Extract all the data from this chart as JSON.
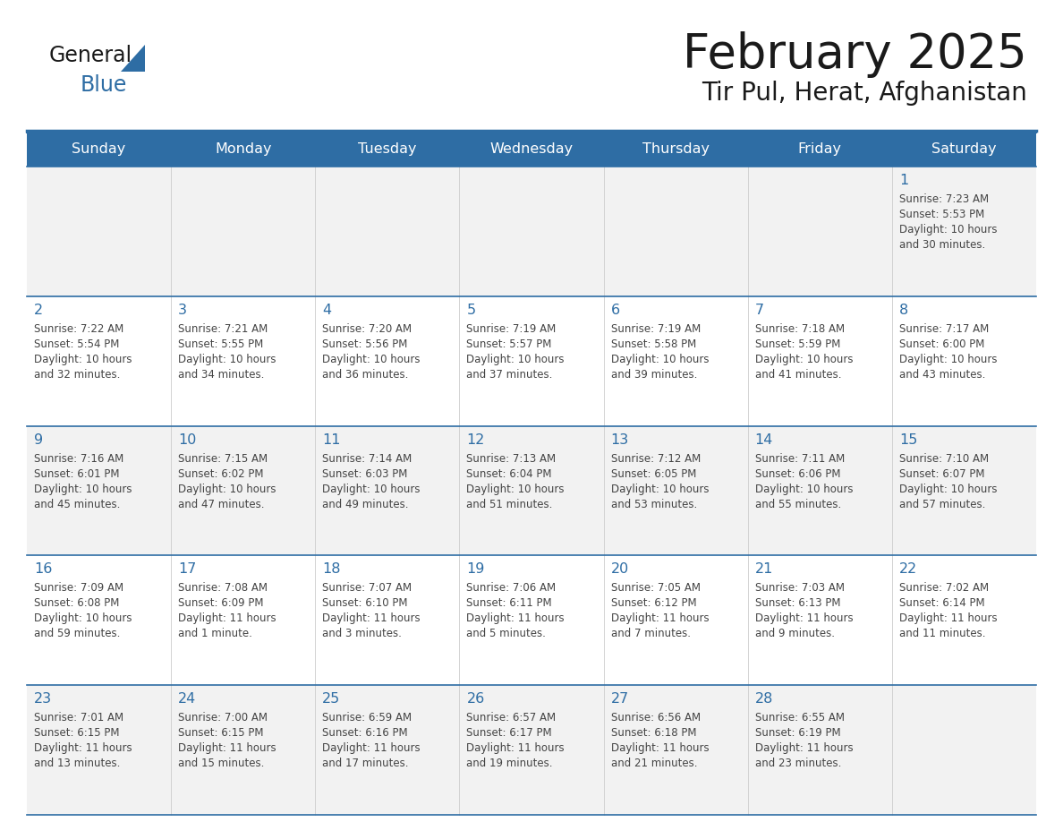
{
  "title": "February 2025",
  "subtitle": "Tir Pul, Herat, Afghanistan",
  "days_of_week": [
    "Sunday",
    "Monday",
    "Tuesday",
    "Wednesday",
    "Thursday",
    "Friday",
    "Saturday"
  ],
  "header_bg": "#2E6DA4",
  "header_text": "#FFFFFF",
  "row_bg_light": "#F2F2F2",
  "row_bg_white": "#FFFFFF",
  "border_color": "#2E6DA4",
  "text_color": "#444444",
  "day_number_color": "#2E6DA4",
  "logo_black": "#1a1a1a",
  "logo_blue": "#2E6DA4",
  "calendar_data": [
    [
      null,
      null,
      null,
      null,
      null,
      null,
      {
        "day": "1",
        "sunrise": "7:23 AM",
        "sunset": "5:53 PM",
        "daylight": "10 hours",
        "daylight2": "and 30 minutes."
      }
    ],
    [
      {
        "day": "2",
        "sunrise": "7:22 AM",
        "sunset": "5:54 PM",
        "daylight": "10 hours",
        "daylight2": "and 32 minutes."
      },
      {
        "day": "3",
        "sunrise": "7:21 AM",
        "sunset": "5:55 PM",
        "daylight": "10 hours",
        "daylight2": "and 34 minutes."
      },
      {
        "day": "4",
        "sunrise": "7:20 AM",
        "sunset": "5:56 PM",
        "daylight": "10 hours",
        "daylight2": "and 36 minutes."
      },
      {
        "day": "5",
        "sunrise": "7:19 AM",
        "sunset": "5:57 PM",
        "daylight": "10 hours",
        "daylight2": "and 37 minutes."
      },
      {
        "day": "6",
        "sunrise": "7:19 AM",
        "sunset": "5:58 PM",
        "daylight": "10 hours",
        "daylight2": "and 39 minutes."
      },
      {
        "day": "7",
        "sunrise": "7:18 AM",
        "sunset": "5:59 PM",
        "daylight": "10 hours",
        "daylight2": "and 41 minutes."
      },
      {
        "day": "8",
        "sunrise": "7:17 AM",
        "sunset": "6:00 PM",
        "daylight": "10 hours",
        "daylight2": "and 43 minutes."
      }
    ],
    [
      {
        "day": "9",
        "sunrise": "7:16 AM",
        "sunset": "6:01 PM",
        "daylight": "10 hours",
        "daylight2": "and 45 minutes."
      },
      {
        "day": "10",
        "sunrise": "7:15 AM",
        "sunset": "6:02 PM",
        "daylight": "10 hours",
        "daylight2": "and 47 minutes."
      },
      {
        "day": "11",
        "sunrise": "7:14 AM",
        "sunset": "6:03 PM",
        "daylight": "10 hours",
        "daylight2": "and 49 minutes."
      },
      {
        "day": "12",
        "sunrise": "7:13 AM",
        "sunset": "6:04 PM",
        "daylight": "10 hours",
        "daylight2": "and 51 minutes."
      },
      {
        "day": "13",
        "sunrise": "7:12 AM",
        "sunset": "6:05 PM",
        "daylight": "10 hours",
        "daylight2": "and 53 minutes."
      },
      {
        "day": "14",
        "sunrise": "7:11 AM",
        "sunset": "6:06 PM",
        "daylight": "10 hours",
        "daylight2": "and 55 minutes."
      },
      {
        "day": "15",
        "sunrise": "7:10 AM",
        "sunset": "6:07 PM",
        "daylight": "10 hours",
        "daylight2": "and 57 minutes."
      }
    ],
    [
      {
        "day": "16",
        "sunrise": "7:09 AM",
        "sunset": "6:08 PM",
        "daylight": "10 hours",
        "daylight2": "and 59 minutes."
      },
      {
        "day": "17",
        "sunrise": "7:08 AM",
        "sunset": "6:09 PM",
        "daylight": "11 hours",
        "daylight2": "and 1 minute."
      },
      {
        "day": "18",
        "sunrise": "7:07 AM",
        "sunset": "6:10 PM",
        "daylight": "11 hours",
        "daylight2": "and 3 minutes."
      },
      {
        "day": "19",
        "sunrise": "7:06 AM",
        "sunset": "6:11 PM",
        "daylight": "11 hours",
        "daylight2": "and 5 minutes."
      },
      {
        "day": "20",
        "sunrise": "7:05 AM",
        "sunset": "6:12 PM",
        "daylight": "11 hours",
        "daylight2": "and 7 minutes."
      },
      {
        "day": "21",
        "sunrise": "7:03 AM",
        "sunset": "6:13 PM",
        "daylight": "11 hours",
        "daylight2": "and 9 minutes."
      },
      {
        "day": "22",
        "sunrise": "7:02 AM",
        "sunset": "6:14 PM",
        "daylight": "11 hours",
        "daylight2": "and 11 minutes."
      }
    ],
    [
      {
        "day": "23",
        "sunrise": "7:01 AM",
        "sunset": "6:15 PM",
        "daylight": "11 hours",
        "daylight2": "and 13 minutes."
      },
      {
        "day": "24",
        "sunrise": "7:00 AM",
        "sunset": "6:15 PM",
        "daylight": "11 hours",
        "daylight2": "and 15 minutes."
      },
      {
        "day": "25",
        "sunrise": "6:59 AM",
        "sunset": "6:16 PM",
        "daylight": "11 hours",
        "daylight2": "and 17 minutes."
      },
      {
        "day": "26",
        "sunrise": "6:57 AM",
        "sunset": "6:17 PM",
        "daylight": "11 hours",
        "daylight2": "and 19 minutes."
      },
      {
        "day": "27",
        "sunrise": "6:56 AM",
        "sunset": "6:18 PM",
        "daylight": "11 hours",
        "daylight2": "and 21 minutes."
      },
      {
        "day": "28",
        "sunrise": "6:55 AM",
        "sunset": "6:19 PM",
        "daylight": "11 hours",
        "daylight2": "and 23 minutes."
      },
      null
    ]
  ]
}
